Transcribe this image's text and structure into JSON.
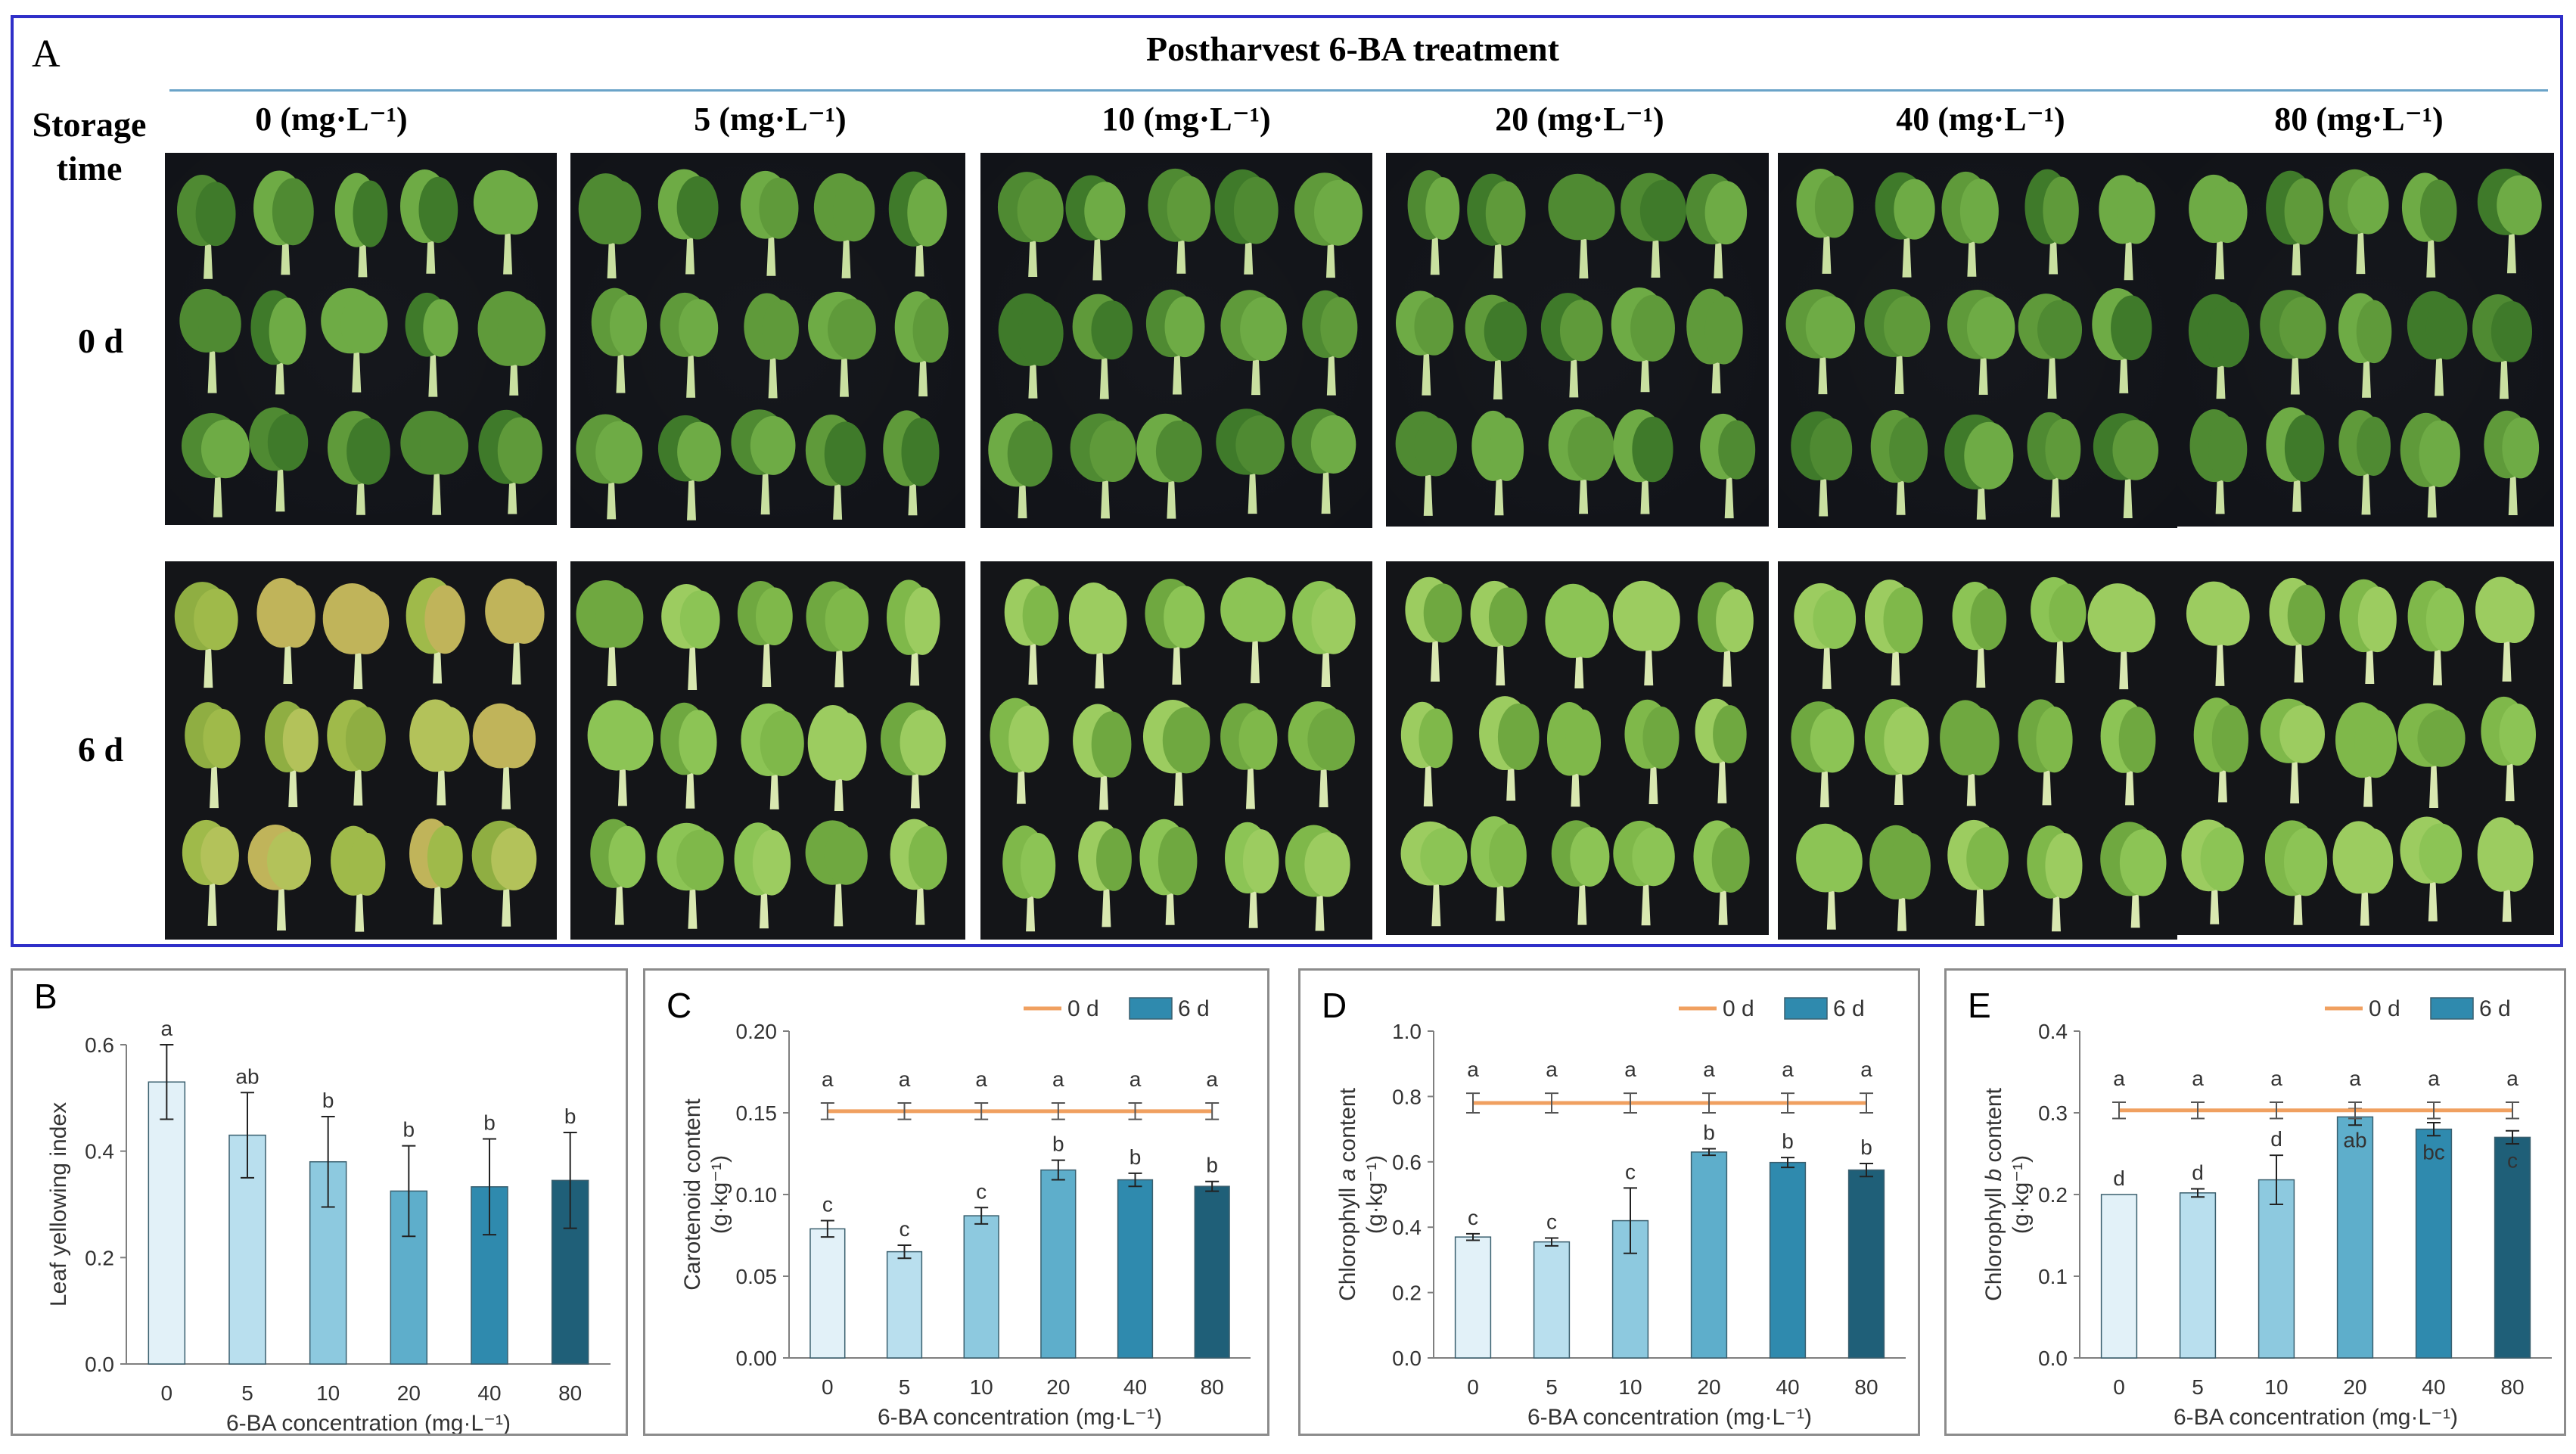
{
  "panel_a": {
    "letter": "A",
    "title": "Postharvest 6-BA treatment",
    "row_header": [
      "Storage",
      "time"
    ],
    "columns": [
      "0 (mg·L⁻¹)",
      "5 (mg·L⁻¹)",
      "10 (mg·L⁻¹)",
      "20 (mg·L⁻¹)",
      "40 (mg·L⁻¹)",
      "80 (mg·L⁻¹)"
    ],
    "rows": [
      "0 d",
      "6 d"
    ]
  },
  "colors": {
    "bars": [
      "#e2f1f8",
      "#b9dfee",
      "#8dc9df",
      "#5eaecb",
      "#2f8aae",
      "#1f5f78"
    ],
    "line": "#f0a060",
    "frame": "#2f2fc8",
    "photo_bg": "#111318"
  },
  "chart_data": [
    {
      "id": "B",
      "type": "bar",
      "letter": "B",
      "categories": [
        "0",
        "5",
        "10",
        "20",
        "40",
        "80"
      ],
      "series": [
        {
          "values": [
            0.53,
            0.43,
            0.38,
            0.325,
            0.333,
            0.345
          ],
          "errors": [
            0.07,
            0.08,
            0.085,
            0.085,
            0.09,
            0.09
          ],
          "letters": [
            "a",
            "ab",
            "b",
            "b",
            "b",
            "b"
          ]
        }
      ],
      "ylabel": "Leaf yellowing index",
      "xlabel": "6-BA concentration (mg·L⁻¹)",
      "ylim": [
        0,
        0.6
      ],
      "yticks": [
        "0.0",
        "0.2",
        "0.4",
        "0.6"
      ],
      "legend": null
    },
    {
      "id": "C",
      "type": "bar+line",
      "letter": "C",
      "categories": [
        "0",
        "5",
        "10",
        "20",
        "40",
        "80"
      ],
      "series": [
        {
          "name": "0 d",
          "type": "line",
          "values": [
            0.151,
            0.151,
            0.151,
            0.151,
            0.151,
            0.151
          ],
          "errors": [
            0.005,
            0.005,
            0.005,
            0.005,
            0.005,
            0.005
          ],
          "letters": [
            "a",
            "a",
            "a",
            "a",
            "a",
            "a"
          ]
        },
        {
          "name": "6 d",
          "type": "bar",
          "values": [
            0.079,
            0.065,
            0.087,
            0.115,
            0.109,
            0.105
          ],
          "errors": [
            0.005,
            0.004,
            0.005,
            0.006,
            0.004,
            0.003
          ],
          "letters": [
            "c",
            "c",
            "c",
            "b",
            "b",
            "b"
          ]
        }
      ],
      "ylabel": "Carotenoid content",
      "ylabel_unit": "(g·kg⁻¹)",
      "xlabel": "6-BA concentration (mg·L⁻¹)",
      "ylim": [
        0,
        0.2
      ],
      "yticks": [
        "0.00",
        "0.05",
        "0.10",
        "0.15",
        "0.20"
      ],
      "legend": "top-right"
    },
    {
      "id": "D",
      "type": "bar+line",
      "letter": "D",
      "categories": [
        "0",
        "5",
        "10",
        "20",
        "40",
        "80"
      ],
      "series": [
        {
          "name": "0 d",
          "type": "line",
          "values": [
            0.78,
            0.78,
            0.78,
            0.78,
            0.78,
            0.78
          ],
          "errors": [
            0.03,
            0.03,
            0.03,
            0.03,
            0.03,
            0.03
          ],
          "letters": [
            "a",
            "a",
            "a",
            "a",
            "a",
            "a"
          ]
        },
        {
          "name": "6 d",
          "type": "bar",
          "values": [
            0.37,
            0.355,
            0.42,
            0.63,
            0.598,
            0.575
          ],
          "errors": [
            0.01,
            0.012,
            0.1,
            0.01,
            0.015,
            0.02
          ],
          "letters": [
            "c",
            "c",
            "c",
            "b",
            "b",
            "b"
          ]
        }
      ],
      "ylabel_prefix": "Chlorophyll",
      "ylabel_italic": "a",
      "ylabel_suffix": "content",
      "ylabel_unit": "(g·kg⁻¹)",
      "xlabel": "6-BA concentration (mg·L⁻¹)",
      "ylim": [
        0,
        1.0
      ],
      "yticks": [
        "0.0",
        "0.2",
        "0.4",
        "0.6",
        "0.8",
        "1.0"
      ],
      "legend": "top-right"
    },
    {
      "id": "E",
      "type": "bar+line",
      "letter": "E",
      "categories": [
        "0",
        "5",
        "10",
        "20",
        "40",
        "80"
      ],
      "series": [
        {
          "name": "0 d",
          "type": "line",
          "values": [
            0.303,
            0.303,
            0.303,
            0.303,
            0.303,
            0.303
          ],
          "errors": [
            0.01,
            0.01,
            0.01,
            0.01,
            0.01,
            0.01
          ],
          "letters": [
            "a",
            "a",
            "a",
            "a",
            "a",
            "a"
          ]
        },
        {
          "name": "6 d",
          "type": "bar",
          "values": [
            0.2,
            0.202,
            0.218,
            0.295,
            0.28,
            0.27
          ],
          "errors": [
            0.0,
            0.005,
            0.03,
            0.01,
            0.008,
            0.008
          ],
          "letters": [
            "d",
            "d",
            "d",
            "ab",
            "bc",
            "c"
          ]
        }
      ],
      "ylabel_prefix": "Chlorophyll",
      "ylabel_italic": "b",
      "ylabel_suffix": "content",
      "ylabel_unit": "(g·kg⁻¹)",
      "xlabel": "6-BA concentration (mg·L⁻¹)",
      "ylim": [
        0,
        0.4
      ],
      "yticks": [
        "0.0",
        "0.1",
        "0.2",
        "0.3",
        "0.4"
      ],
      "legend": "top-right"
    }
  ]
}
